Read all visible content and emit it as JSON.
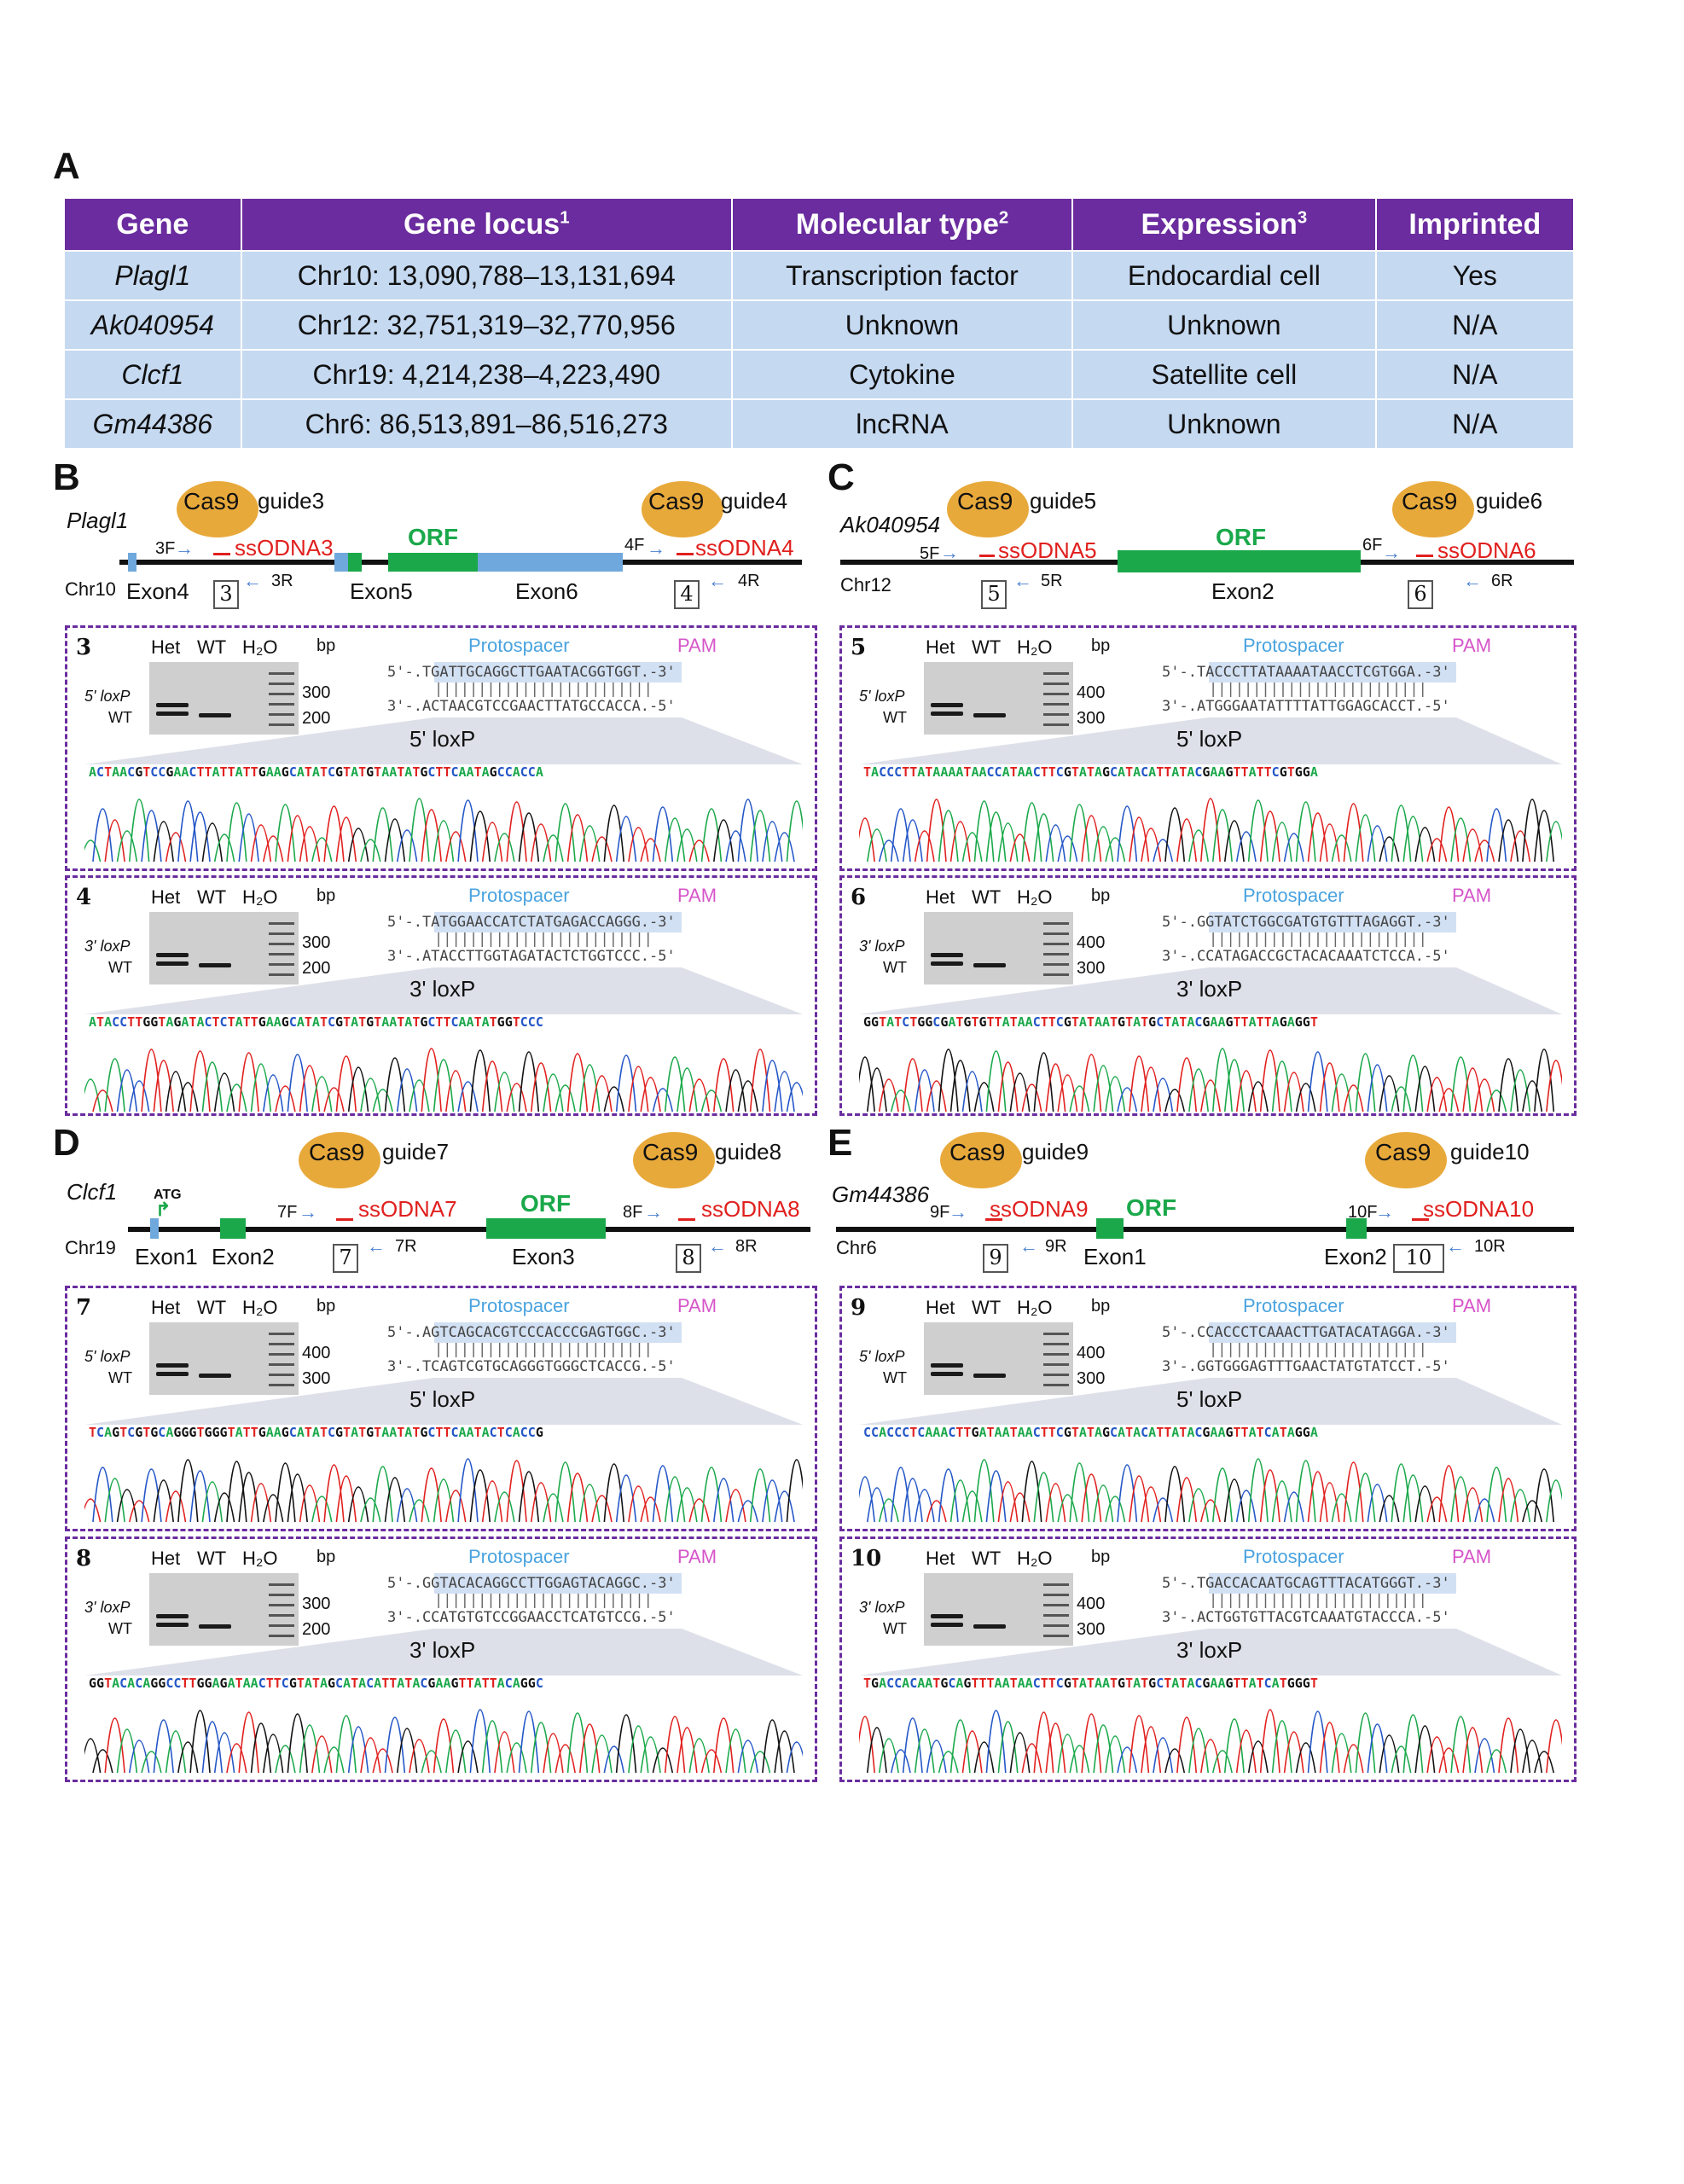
{
  "panel_labels": {
    "A": "A",
    "B": "B",
    "C": "C",
    "D": "D",
    "E": "E"
  },
  "tableA": {
    "headers": [
      "Gene",
      "Gene locus",
      "Molecular type",
      "Expression",
      "Imprinted"
    ],
    "header_sups": [
      "",
      "1",
      "2",
      "3",
      ""
    ],
    "rows": [
      [
        "Plagl1",
        "Chr10: 13,090,788–13,131,694",
        "Transcription factor",
        "Endocardial cell",
        "Yes"
      ],
      [
        "Ak040954",
        "Chr12: 32,751,319–32,770,956",
        "Unknown",
        "Unknown",
        "N/A"
      ],
      [
        "Clcf1",
        "Chr19: 4,214,238–4,223,490",
        "Cytokine",
        "Satellite cell",
        "N/A"
      ],
      [
        "Gm44386",
        "Chr6: 86,513,891–86,516,273",
        "lncRNA",
        "Unknown",
        "N/A"
      ]
    ]
  },
  "schemas": {
    "B": {
      "gene": "Plagl1",
      "chr": "Chr10",
      "exons": [
        "Exon4",
        "Exon5",
        "Exon6"
      ],
      "orf": "ORF",
      "g1": "guide3",
      "g2": "guide4",
      "s1": "ssODNA3",
      "s2": "ssODNA4",
      "pf1": "3F",
      "pr1": "3R",
      "pf2": "4F",
      "pr2": "4R",
      "n1": "3",
      "n2": "4",
      "cas": "Cas9"
    },
    "C": {
      "gene": "Ak040954",
      "chr": "Chr12",
      "exons": [
        "Exon2"
      ],
      "orf": "ORF",
      "g1": "guide5",
      "g2": "guide6",
      "s1": "ssODNA5",
      "s2": "ssODNA6",
      "pf1": "5F",
      "pr1": "5R",
      "pf2": "6F",
      "pr2": "6R",
      "n1": "5",
      "n2": "6",
      "cas": "Cas9"
    },
    "D": {
      "gene": "Clcf1",
      "chr": "Chr19",
      "exons": [
        "Exon1",
        "Exon2",
        "Exon3"
      ],
      "orf": "ORF",
      "atg": "ATG",
      "g1": "guide7",
      "g2": "guide8",
      "s1": "ssODNA7",
      "s2": "ssODNA8",
      "pf1": "7F",
      "pr1": "7R",
      "pf2": "8F",
      "pr2": "8R",
      "n1": "7",
      "n2": "8",
      "cas": "Cas9"
    },
    "E": {
      "gene": "Gm44386",
      "chr": "Chr6",
      "exons": [
        "Exon1",
        "Exon2"
      ],
      "orf": "ORF",
      "g1": "guide9",
      "g2": "guide10",
      "s1": "ssODNA9",
      "s2": "ssODNA10",
      "pf1": "9F",
      "pr1": "9R",
      "pf2": "10F",
      "pr2": "10R",
      "n1": "9",
      "n2": "10",
      "cas": "Cas9"
    }
  },
  "panels": [
    {
      "num": "3",
      "lox": "5' loxP",
      "band": "5' loxP",
      "sizes": [
        "300",
        "200"
      ],
      "top": "5'-.TGATTGCAGGCTTGAATACGGTGGT.-3'",
      "bot": "3'-.ACTAACGTCCGAACTTATGCCACCA.-5'",
      "chrom": "ACTAACGTCCGAACTTATTATTGAAGCATATCGTATGTAATATGCTTCAATAGCCACCA"
    },
    {
      "num": "4",
      "lox": "3' loxP",
      "band": "3' loxP",
      "sizes": [
        "300",
        "200"
      ],
      "top": "5'-.TATGGAACCATCTATGAGACCAGGG.-3'",
      "bot": "3'-.ATACCTTGGTAGATACTCTGGTCCC.-5'",
      "chrom": "ATACCTTGGTAGATACTCTATTGAAGCATATCGTATGTAATATGCTTCAATATGGTCCC"
    },
    {
      "num": "5",
      "lox": "5' loxP",
      "band": "5' loxP",
      "sizes": [
        "400",
        "300"
      ],
      "top": "5'-.TACCCTTATAAAATAACCTCGTGGA.-3'",
      "bot": "3'-.ATGGGAATATTTTATTGGAGCACCT.-5'",
      "chrom": "TACCCTTATAAAATAACCATAACTTCGTATAGCATACATTATACGAAGTTATTCGTGGA"
    },
    {
      "num": "6",
      "lox": "3' loxP",
      "band": "3' loxP",
      "sizes": [
        "400",
        "300"
      ],
      "top": "5'-.GGTATCTGGCGATGTGTTTAGAGGT.-3'",
      "bot": "3'-.CCATAGACCGCTACACAAATCTCCA.-5'",
      "chrom": "GGTATCTGGCGATGTGTTATAACTTCGTATAATGTATGCTATACGAAGTTATTAGAGGT"
    },
    {
      "num": "7",
      "lox": "5' loxP",
      "band": "5' loxP",
      "sizes": [
        "400",
        "300"
      ],
      "top": "5'-.AGTCAGCACGTCCCACCCGAGTGGC.-3'",
      "bot": "3'-.TCAGTCGTGCAGGGTGGGCTCACCG.-5'",
      "chrom": "TCAGTCGTGCAGGGTGGGTATTGAAGCATATCGTATGTAATATGCTTCAATACTCACCG"
    },
    {
      "num": "8",
      "lox": "3' loxP",
      "band": "3' loxP",
      "sizes": [
        "300",
        "200"
      ],
      "top": "5'-.GGTACACAGGCCTTGGAGTACAGGC.-3'",
      "bot": "3'-.CCATGTGTCCGGAACCTCATGTCCG.-5'",
      "chrom": "GGTACACAGGCCTTGGAGATAACTTCGTATAGCATACATTATACGAAGTTATTACAGGC"
    },
    {
      "num": "9",
      "lox": "5' loxP",
      "band": "5' loxP",
      "sizes": [
        "400",
        "300"
      ],
      "top": "5'-.CCACCCTCAAACTTGATACATAGGA.-3'",
      "bot": "3'-.GGTGGGAGTTTGAACTATGTATCCT.-5'",
      "chrom": "CCACCCTCAAACTTGATAATAACTTCGTATAGCATACATTATACGAAGTTATCATAGGA"
    },
    {
      "num": "10",
      "lox": "3' loxP",
      "band": "3' loxP",
      "sizes": [
        "400",
        "300"
      ],
      "top": "5'-.TGACCACAATGCAGTTTACATGGGT.-3'",
      "bot": "3'-.ACTGGTGTTACGTCAAATGTACCCA.-5'",
      "chrom": "TGACCACAATGCAGTTTAATAACTTCGTATAATGTATGCTATACGAAGTTATCATGGGT"
    }
  ],
  "common": {
    "het": "Het",
    "wt": "WT",
    "h2o": "H₂O",
    "bp": "bp",
    "wt_band": "WT",
    "protospacer": "Protospacer",
    "pam": "PAM"
  },
  "colors": {
    "purple": "#6a2c9e",
    "row_bg": "#c5d9f1",
    "orf_green": "#1aa84a",
    "exon_blue": "#6fa8dc",
    "red": "#e0201e",
    "cas9": "#e8a93b"
  }
}
